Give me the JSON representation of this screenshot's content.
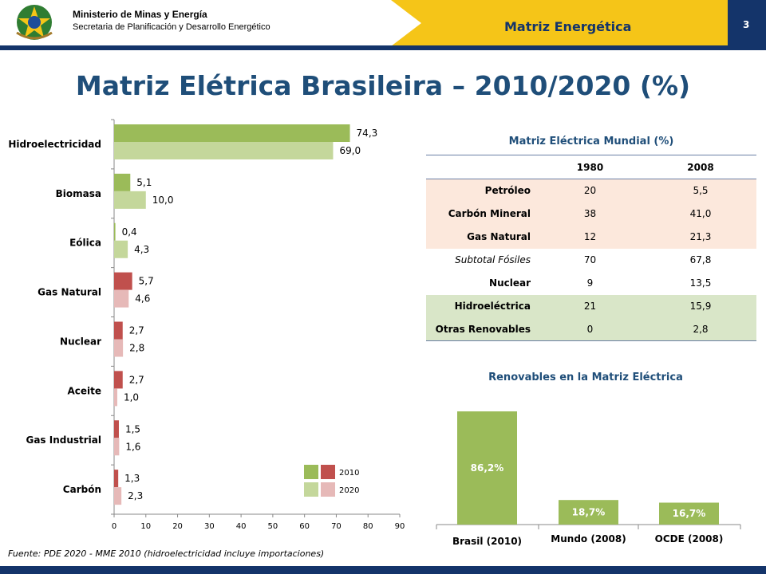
{
  "header": {
    "ministry": "Ministerio de Minas y Energía",
    "secretaria": "Secretaria de Planificación y Desarrollo Energético",
    "banner_title": "Matriz Energética",
    "page_number": "3",
    "banner_color": "#f5c518",
    "brand_color": "#14346a"
  },
  "title": "Matriz Elétrica Brasileira – 2010/2020 (%)",
  "source_note": "Fuente: PDE 2020 - MME 2010   (hidroelectricidad  incluye importaciones)",
  "chart_data": [
    {
      "type": "bar",
      "orientation": "horizontal",
      "categories": [
        "Hidroelectricidad",
        "Biomasa",
        "Eólica",
        "Gas Natural",
        "Nuclear",
        "Aceite",
        "Gas Industrial",
        "Carbón"
      ],
      "series": [
        {
          "name": "2010",
          "values": [
            74.3,
            5.1,
            0.4,
            5.7,
            2.7,
            2.7,
            1.5,
            1.3
          ],
          "value_labels": [
            "74,3",
            "5,1",
            "0,4",
            "5,7",
            "2,7",
            "2,7",
            "1,5",
            "1,3"
          ]
        },
        {
          "name": "2020",
          "values": [
            69.0,
            10.0,
            4.3,
            4.6,
            2.8,
            1.0,
            1.6,
            2.3
          ],
          "value_labels": [
            "69,0",
            "10,0",
            "4,3",
            "4,6",
            "2,8",
            "1,0",
            "1,6",
            "2,3"
          ]
        }
      ],
      "renewable_colors": {
        "2010": "#9bbb59",
        "2020": "#c4d79b"
      },
      "fossil_colors": {
        "2010": "#c0504d",
        "2020": "#e6b9b8"
      },
      "renewable_categories": [
        "Hidroelectricidad",
        "Biomasa",
        "Eólica"
      ],
      "xlim": [
        0,
        90
      ],
      "xticks": [
        0,
        10,
        20,
        30,
        40,
        50,
        60,
        70,
        80,
        90
      ],
      "legend_position": "bottom-right"
    },
    {
      "type": "table",
      "title": "Matriz Eléctrica Mundial (%)",
      "columns": [
        "",
        "1980",
        "2008"
      ],
      "rows": [
        {
          "label": "Petróleo",
          "v1980": "20",
          "v2008": "5,5",
          "group": "fossil"
        },
        {
          "label": "Carbón Mineral",
          "v1980": "38",
          "v2008": "41,0",
          "group": "fossil"
        },
        {
          "label": "Gas Natural",
          "v1980": "12",
          "v2008": "21,3",
          "group": "fossil"
        },
        {
          "label": "Subtotal Fósiles",
          "v1980": "70",
          "v2008": "67,8",
          "group": "subtotal"
        },
        {
          "label": "Nuclear",
          "v1980": "9",
          "v2008": "13,5",
          "group": "other"
        },
        {
          "label": "Hidroeléctrica",
          "v1980": "21",
          "v2008": "15,9",
          "group": "renewable"
        },
        {
          "label": "Otras Renovables",
          "v1980": "0",
          "v2008": "2,8",
          "group": "renewable"
        }
      ]
    },
    {
      "type": "bar",
      "title": "Renovables en la Matriz Eléctrica",
      "categories": [
        "Brasil (2010)",
        "Mundo (2008)",
        "OCDE (2008)"
      ],
      "values": [
        86.2,
        18.7,
        16.7
      ],
      "value_labels": [
        "86,2%",
        "18,7%",
        "16,7%"
      ],
      "color": "#9bbb59"
    }
  ]
}
